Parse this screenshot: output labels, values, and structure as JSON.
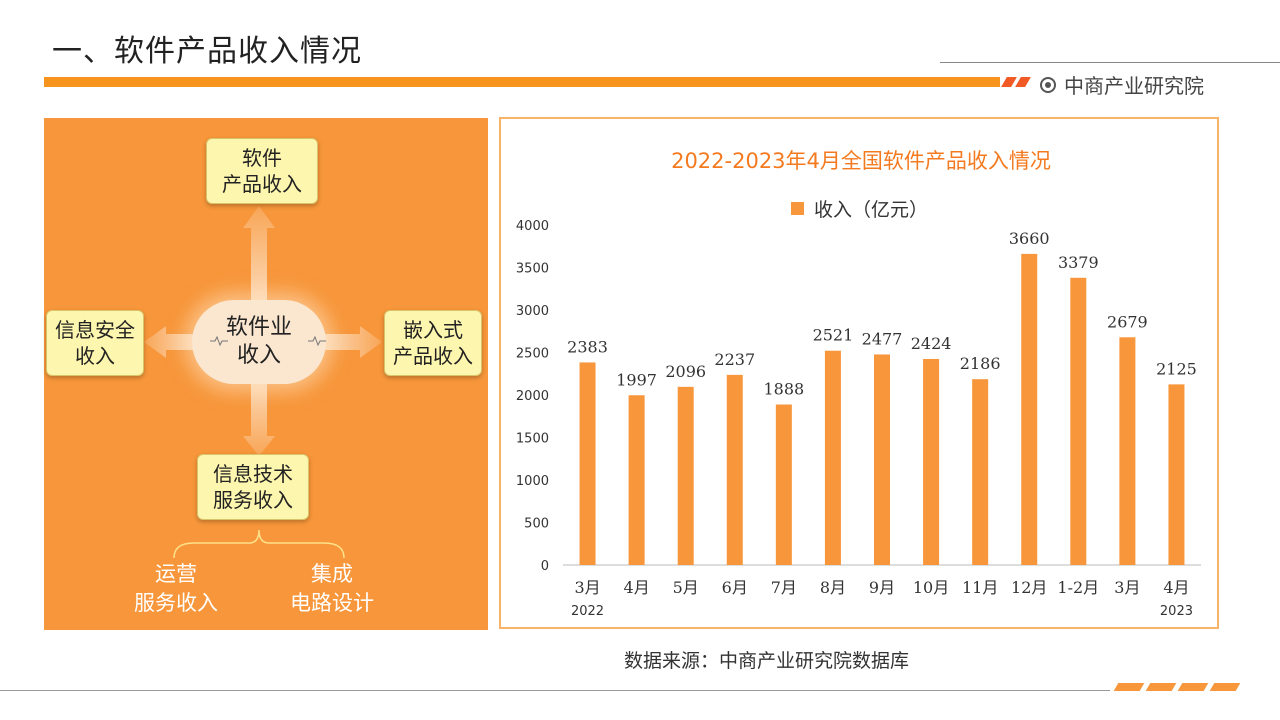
{
  "header": {
    "title": "一、软件产品收入情况",
    "brand": "中商产业研究院"
  },
  "diagram": {
    "center": "软件业\n收入",
    "top": "软件\n产品收入",
    "left": "信息安全\n收入",
    "right": "嵌入式\n产品收入",
    "bottom": "信息技术\n服务收入",
    "sub_left": "运营\n服务收入",
    "sub_right": "集成\n电路设计"
  },
  "chart_data": {
    "type": "bar",
    "title": "2022-2023年4月全国软件产品收入情况",
    "legend": "收入（亿元）",
    "categories": [
      "3月",
      "4月",
      "5月",
      "6月",
      "7月",
      "8月",
      "9月",
      "10月",
      "11月",
      "12月",
      "1-2月",
      "3月",
      "4月"
    ],
    "values": [
      2383,
      1997,
      2096,
      2237,
      1888,
      2521,
      2477,
      2424,
      2186,
      3660,
      3379,
      2679,
      2125
    ],
    "year_labels": [
      {
        "index": 0,
        "label": "2022"
      },
      {
        "index": 12,
        "label": "2023"
      }
    ],
    "ylim": [
      0,
      4000
    ],
    "yticks": [
      0,
      500,
      1000,
      1500,
      2000,
      2500,
      3000,
      3500,
      4000
    ],
    "grid": false,
    "colors": {
      "bar": "#f7963a"
    }
  },
  "footer": {
    "source": "数据来源：中商产业研究院数据库"
  },
  "colors": {
    "accent": "#f7941d",
    "panel": "#f7963a",
    "box": "#fdf6ae"
  }
}
